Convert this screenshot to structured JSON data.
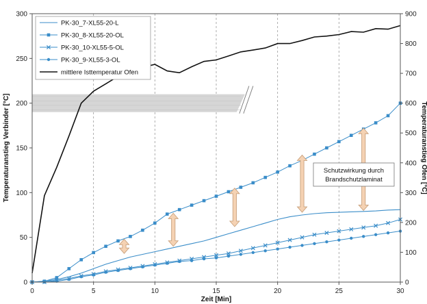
{
  "chart_data": {
    "type": "line",
    "xlabel": "Zeit [Min]",
    "ylabel": "Temperaturanstieg Verbinder [°C]",
    "y2label": "Temperaturanstieg Ofen [°C]",
    "xlim": [
      0,
      30
    ],
    "ylim": [
      0,
      300
    ],
    "y2lim": [
      0,
      900
    ],
    "xticks": [
      0,
      5,
      10,
      15,
      20,
      25,
      30
    ],
    "yticks": [
      0,
      50,
      100,
      150,
      200,
      250,
      300
    ],
    "y2ticks": [
      0,
      100,
      200,
      300,
      400,
      500,
      600,
      700,
      800,
      900
    ],
    "grid": "vertical dashed",
    "legend_position": "top-left",
    "colors": {
      "series": "#3a8dc9",
      "oven": "#111111",
      "arrow_fill": "#f5d2b3",
      "arrow_stroke": "#c9a27e",
      "band": "#d6d6d6"
    },
    "series": [
      {
        "name": "PK-30_7-XL55-20-L",
        "axis": "left",
        "marker": "none",
        "x": [
          0,
          1,
          2,
          3,
          4,
          5,
          6,
          7,
          8,
          9,
          10,
          11,
          12,
          13,
          14,
          15,
          16,
          17,
          18,
          19,
          20,
          21,
          22,
          23,
          24,
          25,
          26,
          27,
          28,
          29,
          30
        ],
        "y": [
          0,
          1,
          3,
          6,
          10,
          15,
          20,
          24,
          28,
          31,
          34,
          37,
          40,
          43,
          46,
          50,
          54,
          58,
          62,
          66,
          70,
          73,
          75,
          76.5,
          77.5,
          78,
          78.5,
          79,
          79.5,
          80.5,
          81
        ]
      },
      {
        "name": "PK-30_8-XL55-20-OL",
        "axis": "left",
        "marker": "square",
        "x": [
          0,
          1,
          2,
          3,
          4,
          5,
          6,
          7,
          8,
          9,
          10,
          11,
          12,
          13,
          14,
          15,
          16,
          17,
          18,
          19,
          20,
          21,
          22,
          23,
          24,
          25,
          26,
          27,
          28,
          29,
          30
        ],
        "y": [
          0,
          1,
          5,
          15,
          25,
          33,
          40,
          46,
          51,
          58,
          66,
          76,
          81,
          86,
          91,
          96,
          101,
          106,
          111,
          117,
          123,
          130,
          136,
          143,
          150,
          157,
          164,
          171,
          178,
          186,
          200
        ]
      },
      {
        "name": "PK-30_10-XL55-5-OL",
        "axis": "left",
        "marker": "x",
        "x": [
          0,
          1,
          2,
          3,
          4,
          5,
          6,
          7,
          8,
          9,
          10,
          11,
          12,
          13,
          14,
          15,
          16,
          17,
          18,
          19,
          20,
          21,
          22,
          23,
          24,
          25,
          26,
          27,
          28,
          29,
          30
        ],
        "y": [
          0,
          0,
          2,
          4,
          7,
          9,
          12,
          14,
          16,
          18,
          20,
          22,
          24,
          26,
          28,
          30,
          32,
          35,
          38,
          41,
          44,
          47,
          50,
          53,
          55,
          57,
          59,
          61,
          63,
          66,
          70
        ]
      },
      {
        "name": "PK-30_9-XL55-3-OL",
        "axis": "left",
        "marker": "circle",
        "x": [
          0,
          1,
          2,
          3,
          4,
          5,
          6,
          7,
          8,
          9,
          10,
          11,
          12,
          13,
          14,
          15,
          16,
          17,
          18,
          19,
          20,
          21,
          22,
          23,
          24,
          25,
          26,
          27,
          28,
          29,
          30
        ],
        "y": [
          0,
          0,
          1,
          3,
          6,
          8,
          11,
          13,
          15,
          17,
          19,
          21,
          23,
          24,
          26,
          27,
          29,
          31,
          33,
          35,
          37,
          39,
          41,
          43,
          45,
          47,
          49,
          51,
          53,
          55,
          57
        ]
      },
      {
        "name": "mittlere Isttemperatur Ofen",
        "axis": "right",
        "marker": "none",
        "x": [
          0,
          1,
          2,
          3,
          4,
          5,
          6,
          7,
          8,
          9,
          10,
          11,
          12,
          13,
          14,
          15,
          16,
          17,
          18,
          19,
          20,
          21,
          22,
          23,
          24,
          25,
          26,
          27,
          28,
          29,
          30
        ],
        "y": [
          30,
          290,
          385,
          490,
          600,
          640,
          665,
          690,
          718,
          720,
          730,
          708,
          702,
          722,
          740,
          745,
          758,
          772,
          778,
          785,
          800,
          800,
          810,
          822,
          825,
          830,
          840,
          838,
          850,
          848,
          860
        ]
      }
    ],
    "annotations": {
      "box_lines": [
        "Schutzwirkung durch",
        "Brandschutzlaminat"
      ],
      "arrows": [
        {
          "x": 7.5,
          "y1": 32,
          "y2": 48
        },
        {
          "x": 11.5,
          "y1": 40,
          "y2": 77
        },
        {
          "x": 16.5,
          "y1": 62,
          "y2": 105
        },
        {
          "x": 22,
          "y1": 78,
          "y2": 142
        },
        {
          "x": 27,
          "y1": 80,
          "y2": 172
        }
      ],
      "band": {
        "x1": 0,
        "x2": 17,
        "y1": 190,
        "y2": 210
      }
    }
  }
}
